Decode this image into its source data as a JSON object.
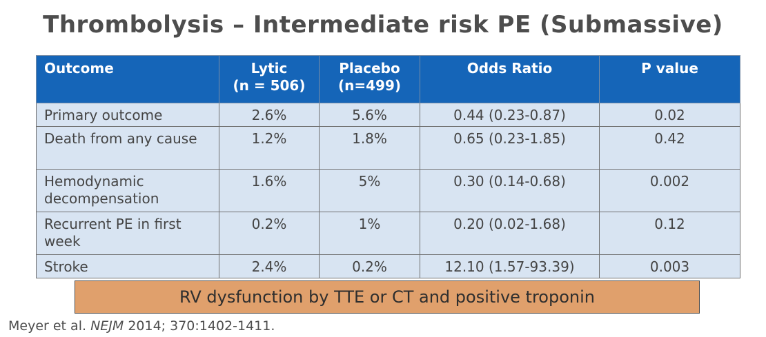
{
  "title": "Thrombolysis – Intermediate risk PE (Submassive)",
  "table": {
    "headers": {
      "outcome": "Outcome",
      "lytic_line1": "Lytic",
      "lytic_line2": "(n = 506)",
      "placebo_line1": "Placebo",
      "placebo_line2": "(n=499)",
      "odds_ratio": "Odds Ratio",
      "p_value": "P value"
    },
    "rows": [
      {
        "outcome": "Primary outcome",
        "lytic": "2.6%",
        "placebo": "5.6%",
        "odds_ratio": "0.44 (0.23-0.87)",
        "p_value": "0.02"
      },
      {
        "outcome": "Death from any cause",
        "lytic": "1.2%",
        "placebo": "1.8%",
        "odds_ratio": "0.65 (0.23-1.85)",
        "p_value": "0.42"
      },
      {
        "outcome": "Hemodynamic decompensation",
        "lytic": "1.6%",
        "placebo": "5%",
        "odds_ratio": "0.30 (0.14-0.68)",
        "p_value": "0.002"
      },
      {
        "outcome": "Recurrent PE in first week",
        "lytic": "0.2%",
        "placebo": "1%",
        "odds_ratio": "0.20 (0.02-1.68)",
        "p_value": "0.12"
      },
      {
        "outcome": "Stroke",
        "lytic": "2.4%",
        "placebo": "0.2%",
        "odds_ratio": "12.10 (1.57-93.39)",
        "p_value": "0.003"
      }
    ]
  },
  "banner": "RV dysfunction by TTE or CT and positive troponin",
  "citation": {
    "authors": "Meyer et al.",
    "journal": "NEJM",
    "details": "2014; 370:1402-1411."
  },
  "colors": {
    "header_bg": "#1565b8",
    "cell_bg": "#d8e4f2",
    "banner_bg": "#e0a06c",
    "title_text": "#4d4d4d"
  }
}
